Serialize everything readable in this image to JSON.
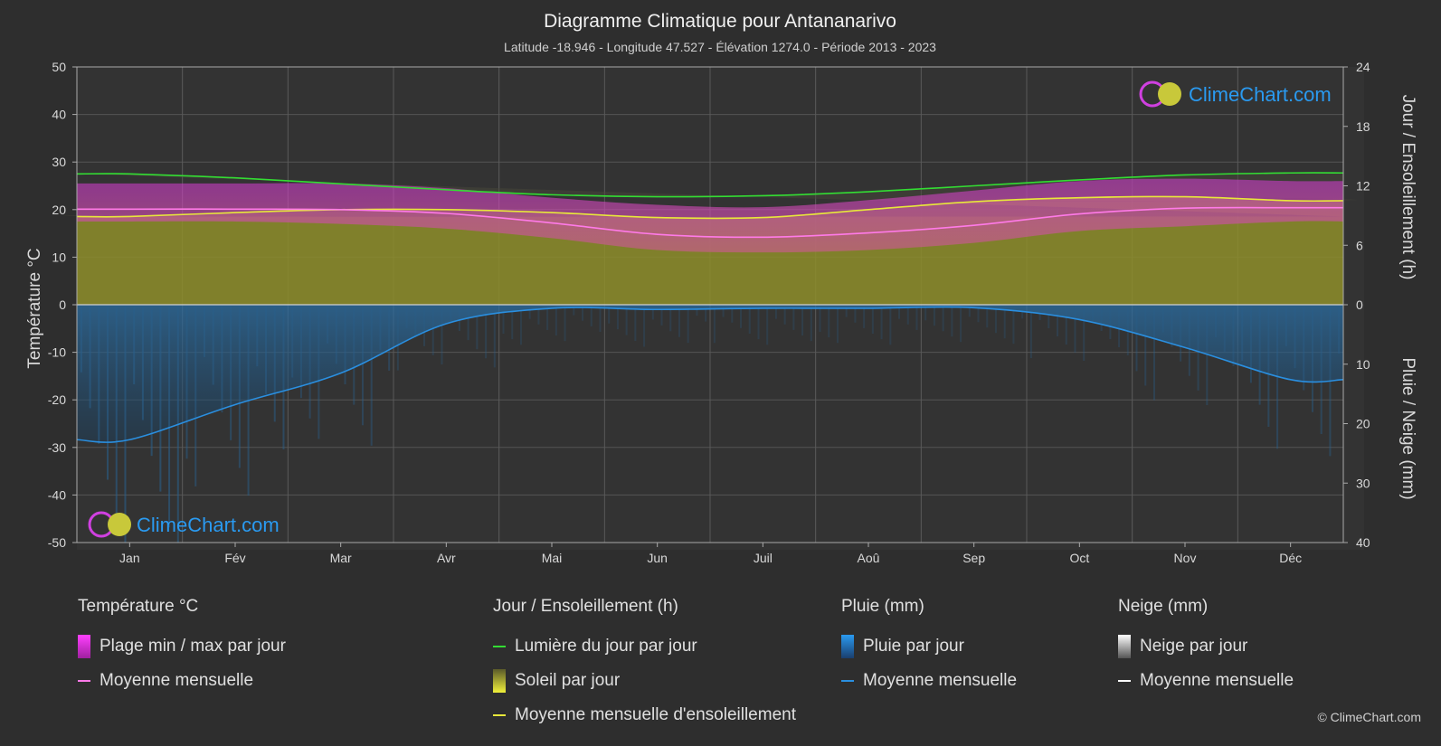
{
  "title": "Diagramme Climatique pour Antananarivo",
  "subtitle": "Latitude -18.946 - Longitude 47.527 - Élévation 1274.0 - Période 2013 - 2023",
  "watermark": "ClimeChart.com",
  "copyright": "© ClimeChart.com",
  "colors": {
    "background": "#2e2e2e",
    "temp_range": "#d63ad6",
    "temp_mean": "#ff7ae8",
    "daylight": "#33dd33",
    "sunshine_fill": "#8e8e2a",
    "sunshine_mean": "#e8e83a",
    "rain_fill": "#1f5f8f",
    "rain_mean": "#2a8fe0",
    "snow_mean": "#ffffff",
    "brand": "#2a9af0"
  },
  "legend": {
    "temperature": {
      "title": "Température °C",
      "items": [
        "Plage min / max par jour",
        "Moyenne mensuelle"
      ]
    },
    "sun": {
      "title": "Jour / Ensoleillement (h)",
      "items": [
        "Lumière du jour par jour",
        "Soleil par jour",
        "Moyenne mensuelle d'ensoleillement"
      ]
    },
    "rain": {
      "title": "Pluie (mm)",
      "items": [
        "Pluie par jour",
        "Moyenne mensuelle"
      ]
    },
    "snow": {
      "title": "Neige (mm)",
      "items": [
        "Neige par jour",
        "Moyenne mensuelle"
      ]
    }
  },
  "chart_data": {
    "type": "line",
    "categories": [
      "Jan",
      "Fév",
      "Mar",
      "Avr",
      "Mai",
      "Jun",
      "Juil",
      "Aoû",
      "Sep",
      "Oct",
      "Nov",
      "Déc"
    ],
    "y_left": {
      "label": "Température °C",
      "ticks": [
        50,
        40,
        30,
        20,
        10,
        0,
        -10,
        -20,
        -30,
        -40,
        -50
      ],
      "range": [
        -50,
        50
      ]
    },
    "y_right_top": {
      "label": "Jour / Ensoleillement (h)",
      "ticks": [
        24,
        18,
        12,
        6,
        0
      ],
      "range": [
        0,
        24
      ]
    },
    "y_right_bottom": {
      "label": "Pluie / Neige (mm)",
      "ticks": [
        0,
        10,
        20,
        30,
        40
      ],
      "range": [
        0,
        40
      ]
    },
    "grid": true,
    "series": [
      {
        "name": "Plage min / max par jour",
        "axis": "temperature",
        "min": [
          17.5,
          17.5,
          17,
          16,
          14,
          11.5,
          11,
          11.5,
          13,
          15.5,
          16.5,
          17.5
        ],
        "max": [
          25.5,
          25.5,
          25.5,
          24.5,
          22.5,
          21,
          20.5,
          22,
          24,
          26,
          26.5,
          26
        ]
      },
      {
        "name": "Moyenne mensuelle",
        "axis": "temperature",
        "values": [
          20.1,
          20.1,
          20,
          19.2,
          17.2,
          14.8,
          14.2,
          15.1,
          16.7,
          19.1,
          20.3,
          20.4
        ]
      },
      {
        "name": "Lumière du jour par jour",
        "axis": "hours",
        "values": [
          13.2,
          12.8,
          12.2,
          11.6,
          11.1,
          10.9,
          11.0,
          11.4,
          12.0,
          12.6,
          13.1,
          13.3
        ]
      },
      {
        "name": "Moyenne mensuelle d'ensoleillement",
        "axis": "hours",
        "values": [
          8.9,
          9.3,
          9.6,
          9.6,
          9.3,
          8.8,
          8.8,
          9.6,
          10.4,
          10.8,
          10.9,
          10.5
        ]
      },
      {
        "name": "Moyenne mensuelle (pluie)",
        "axis": "precip",
        "values": [
          22.7,
          16.8,
          11.5,
          3.2,
          0.6,
          0.8,
          0.6,
          0.6,
          0.5,
          2.5,
          7.2,
          12.6
        ]
      }
    ]
  }
}
